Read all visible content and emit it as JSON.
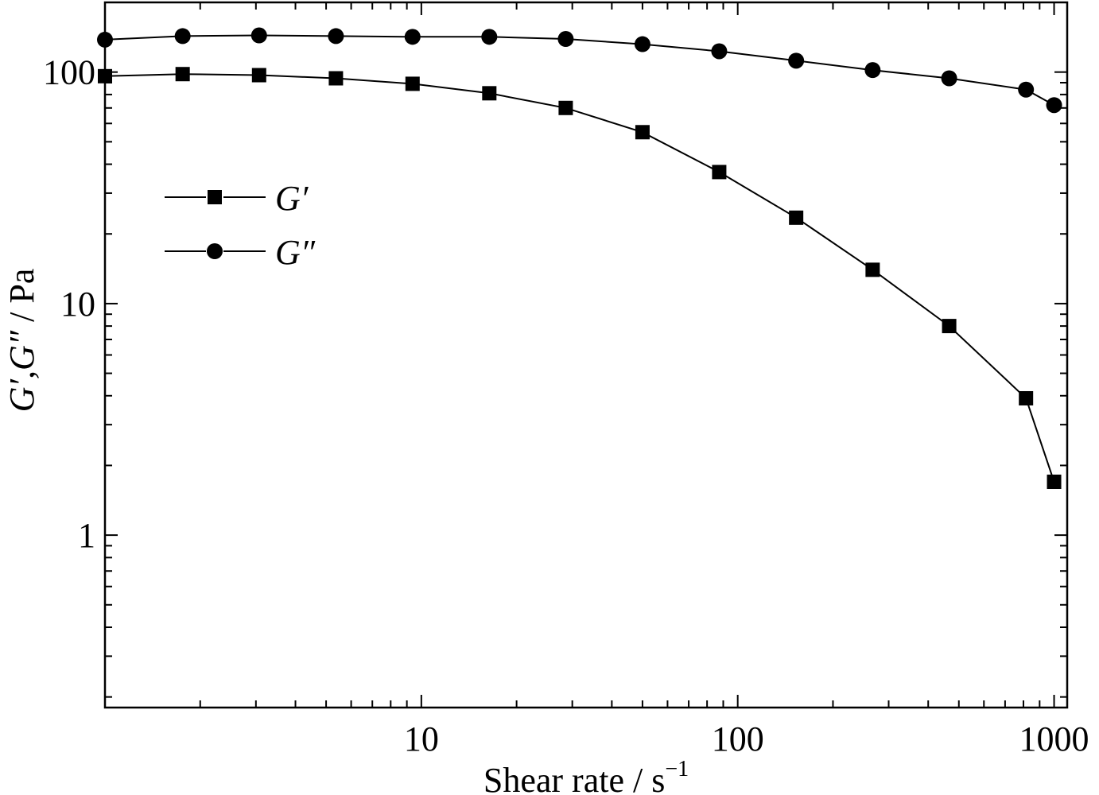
{
  "chart_data": {
    "type": "line",
    "xscale": "log",
    "yscale": "log",
    "xlim": [
      1.0,
      1100
    ],
    "ylim": [
      0.18,
      200
    ],
    "x_ticks": [
      {
        "value": 10,
        "label": "10"
      },
      {
        "value": 100,
        "label": "100"
      },
      {
        "value": 1000,
        "label": "1000"
      }
    ],
    "y_ticks": [
      {
        "value": 1,
        "label": "1"
      },
      {
        "value": 10,
        "label": "10"
      },
      {
        "value": 100,
        "label": "100"
      }
    ],
    "xlabel": {
      "main": "Shear rate / s",
      "superscript": "−1"
    },
    "ylabel": {
      "symbol": "G′,G″",
      "unit": " / Pa"
    },
    "grid": false,
    "legend_position": "upper-left",
    "x": [
      1.0,
      1.76,
      3.07,
      5.37,
      9.38,
      16.4,
      28.6,
      50.0,
      87.4,
      153,
      267,
      466,
      815,
      1000
    ],
    "series": [
      {
        "name": "G′",
        "marker": "square",
        "color": "#000000",
        "values": [
          96,
          98,
          97,
          94,
          89,
          81,
          70,
          55,
          37,
          23.5,
          14,
          8,
          3.9,
          1.7
        ]
      },
      {
        "name": "G″",
        "marker": "circle",
        "color": "#000000",
        "values": [
          138,
          143,
          144,
          143,
          142,
          142,
          139,
          132,
          123,
          112,
          102,
          94,
          84,
          72
        ]
      }
    ]
  }
}
